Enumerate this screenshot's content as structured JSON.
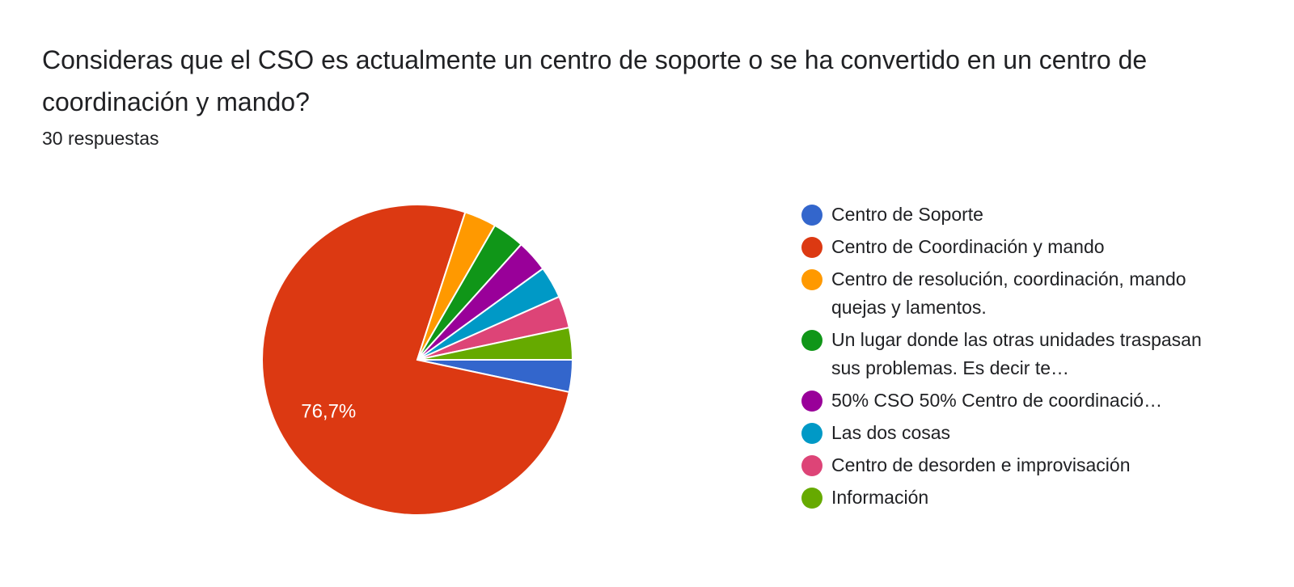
{
  "question": {
    "title": "Consideras que el CSO es actualmente un centro de soporte o se ha convertido en un centro de coordinación y mando?",
    "responses": "30 respuestas"
  },
  "chart_data": {
    "type": "pie",
    "total": 30,
    "labels": [
      "Centro de Soporte",
      "Centro de Coordinación y mando",
      "Centro de resolución, coordinación, mando quejas y lamentos.",
      "Un lugar donde las otras unidades traspasan sus problemas. Es decir te…",
      "50% CSO 50% Centro de coordinació…",
      "Las dos cosas",
      "Centro de desorden e improvisación",
      "Información"
    ],
    "values": [
      1,
      23,
      1,
      1,
      1,
      1,
      1,
      1
    ],
    "colors": [
      "#3366cc",
      "#dc3912",
      "#ff9900",
      "#109618",
      "#990099",
      "#0099c6",
      "#dd4477",
      "#66aa00"
    ],
    "data_labels": [
      "",
      "76,7%",
      "",
      "",
      "",
      "",
      "",
      ""
    ],
    "legend_position": "right"
  }
}
